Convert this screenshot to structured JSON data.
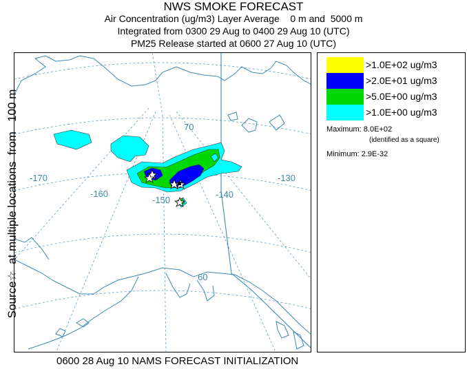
{
  "titles": {
    "line1": "NWS SMOKE FORECAST",
    "line2": "Air Concentration (ug/m3) Layer Average    0 m and  5000 m",
    "line3": "Integrated from 0300 29 Aug to 0400 29 Aug 10 (UTC)",
    "line4": "PM25 Release started at 0600 27 Aug 10 (UTC)"
  },
  "side_label": "Source☆  at multiple locations  from   100 m",
  "map": {
    "lat_labels": [
      "70",
      "60"
    ],
    "lon_labels": [
      "-170",
      "-160",
      "-150",
      "-140",
      "-130"
    ],
    "grid_color": "#5a9ec8",
    "coast_color": "#3a8ab0"
  },
  "legend": {
    "items": [
      {
        "label": ">1.0E+02 ug/m3",
        "color": "#ffff00"
      },
      {
        "label": ">2.0E+01 ug/m3",
        "color": "#0000ff"
      },
      {
        "label": ">5.0E+00 ug/m3",
        "color": "#00d800"
      },
      {
        "label": ">1.0E+00 ug/m3",
        "color": "#00ffff"
      }
    ],
    "maximum": "Maximum: 8.0E+02",
    "maximum_note": "(identified as a square)",
    "minimum": "Minimum: 2.9E-32"
  },
  "bottom_label": "0600 28 Aug 10 NAMS FORECAST INITIALIZATION"
}
